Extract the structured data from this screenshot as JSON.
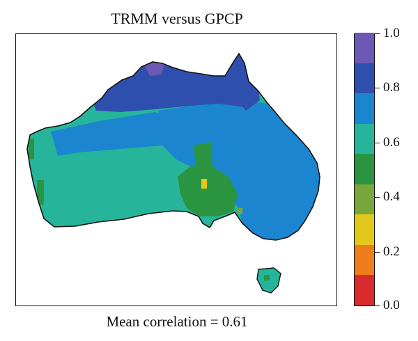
{
  "title": "TRMM versus GPCP",
  "footer": "Mean correlation = 0.61",
  "colorbar": {
    "min": 0.0,
    "max": 1.0,
    "tick_labels": [
      "1.0",
      "0.8",
      "0.6",
      "0.4",
      "0.2",
      "0.0"
    ],
    "colors_bottom_to_top": [
      "#d92b2b",
      "#ee7d1e",
      "#e3c81c",
      "#79a63a",
      "#2a9440",
      "#26b59a",
      "#1b86cf",
      "#2f4fae",
      "#6e58b5"
    ]
  },
  "map": {
    "region": "Australia",
    "regions": [
      {
        "name": "north-coast",
        "value": 0.82,
        "color": "#2f4fae"
      },
      {
        "name": "cape-york",
        "value": 0.82,
        "color": "#2f4fae"
      },
      {
        "name": "northern-interior",
        "value": 0.7,
        "color": "#1b86cf"
      },
      {
        "name": "east-coast",
        "value": 0.68,
        "color": "#1b86cf"
      },
      {
        "name": "southeast",
        "value": 0.65,
        "color": "#1b86cf"
      },
      {
        "name": "western-interior",
        "value": 0.58,
        "color": "#26b59a"
      },
      {
        "name": "central",
        "value": 0.45,
        "color": "#2a9440"
      },
      {
        "name": "central-hotspot",
        "value": 0.25,
        "color": "#e3c81c"
      },
      {
        "name": "lake-eyre-spot",
        "value": 0.35,
        "color": "#79a63a"
      },
      {
        "name": "tasmania",
        "value": 0.58,
        "color": "#26b59a"
      }
    ]
  }
}
